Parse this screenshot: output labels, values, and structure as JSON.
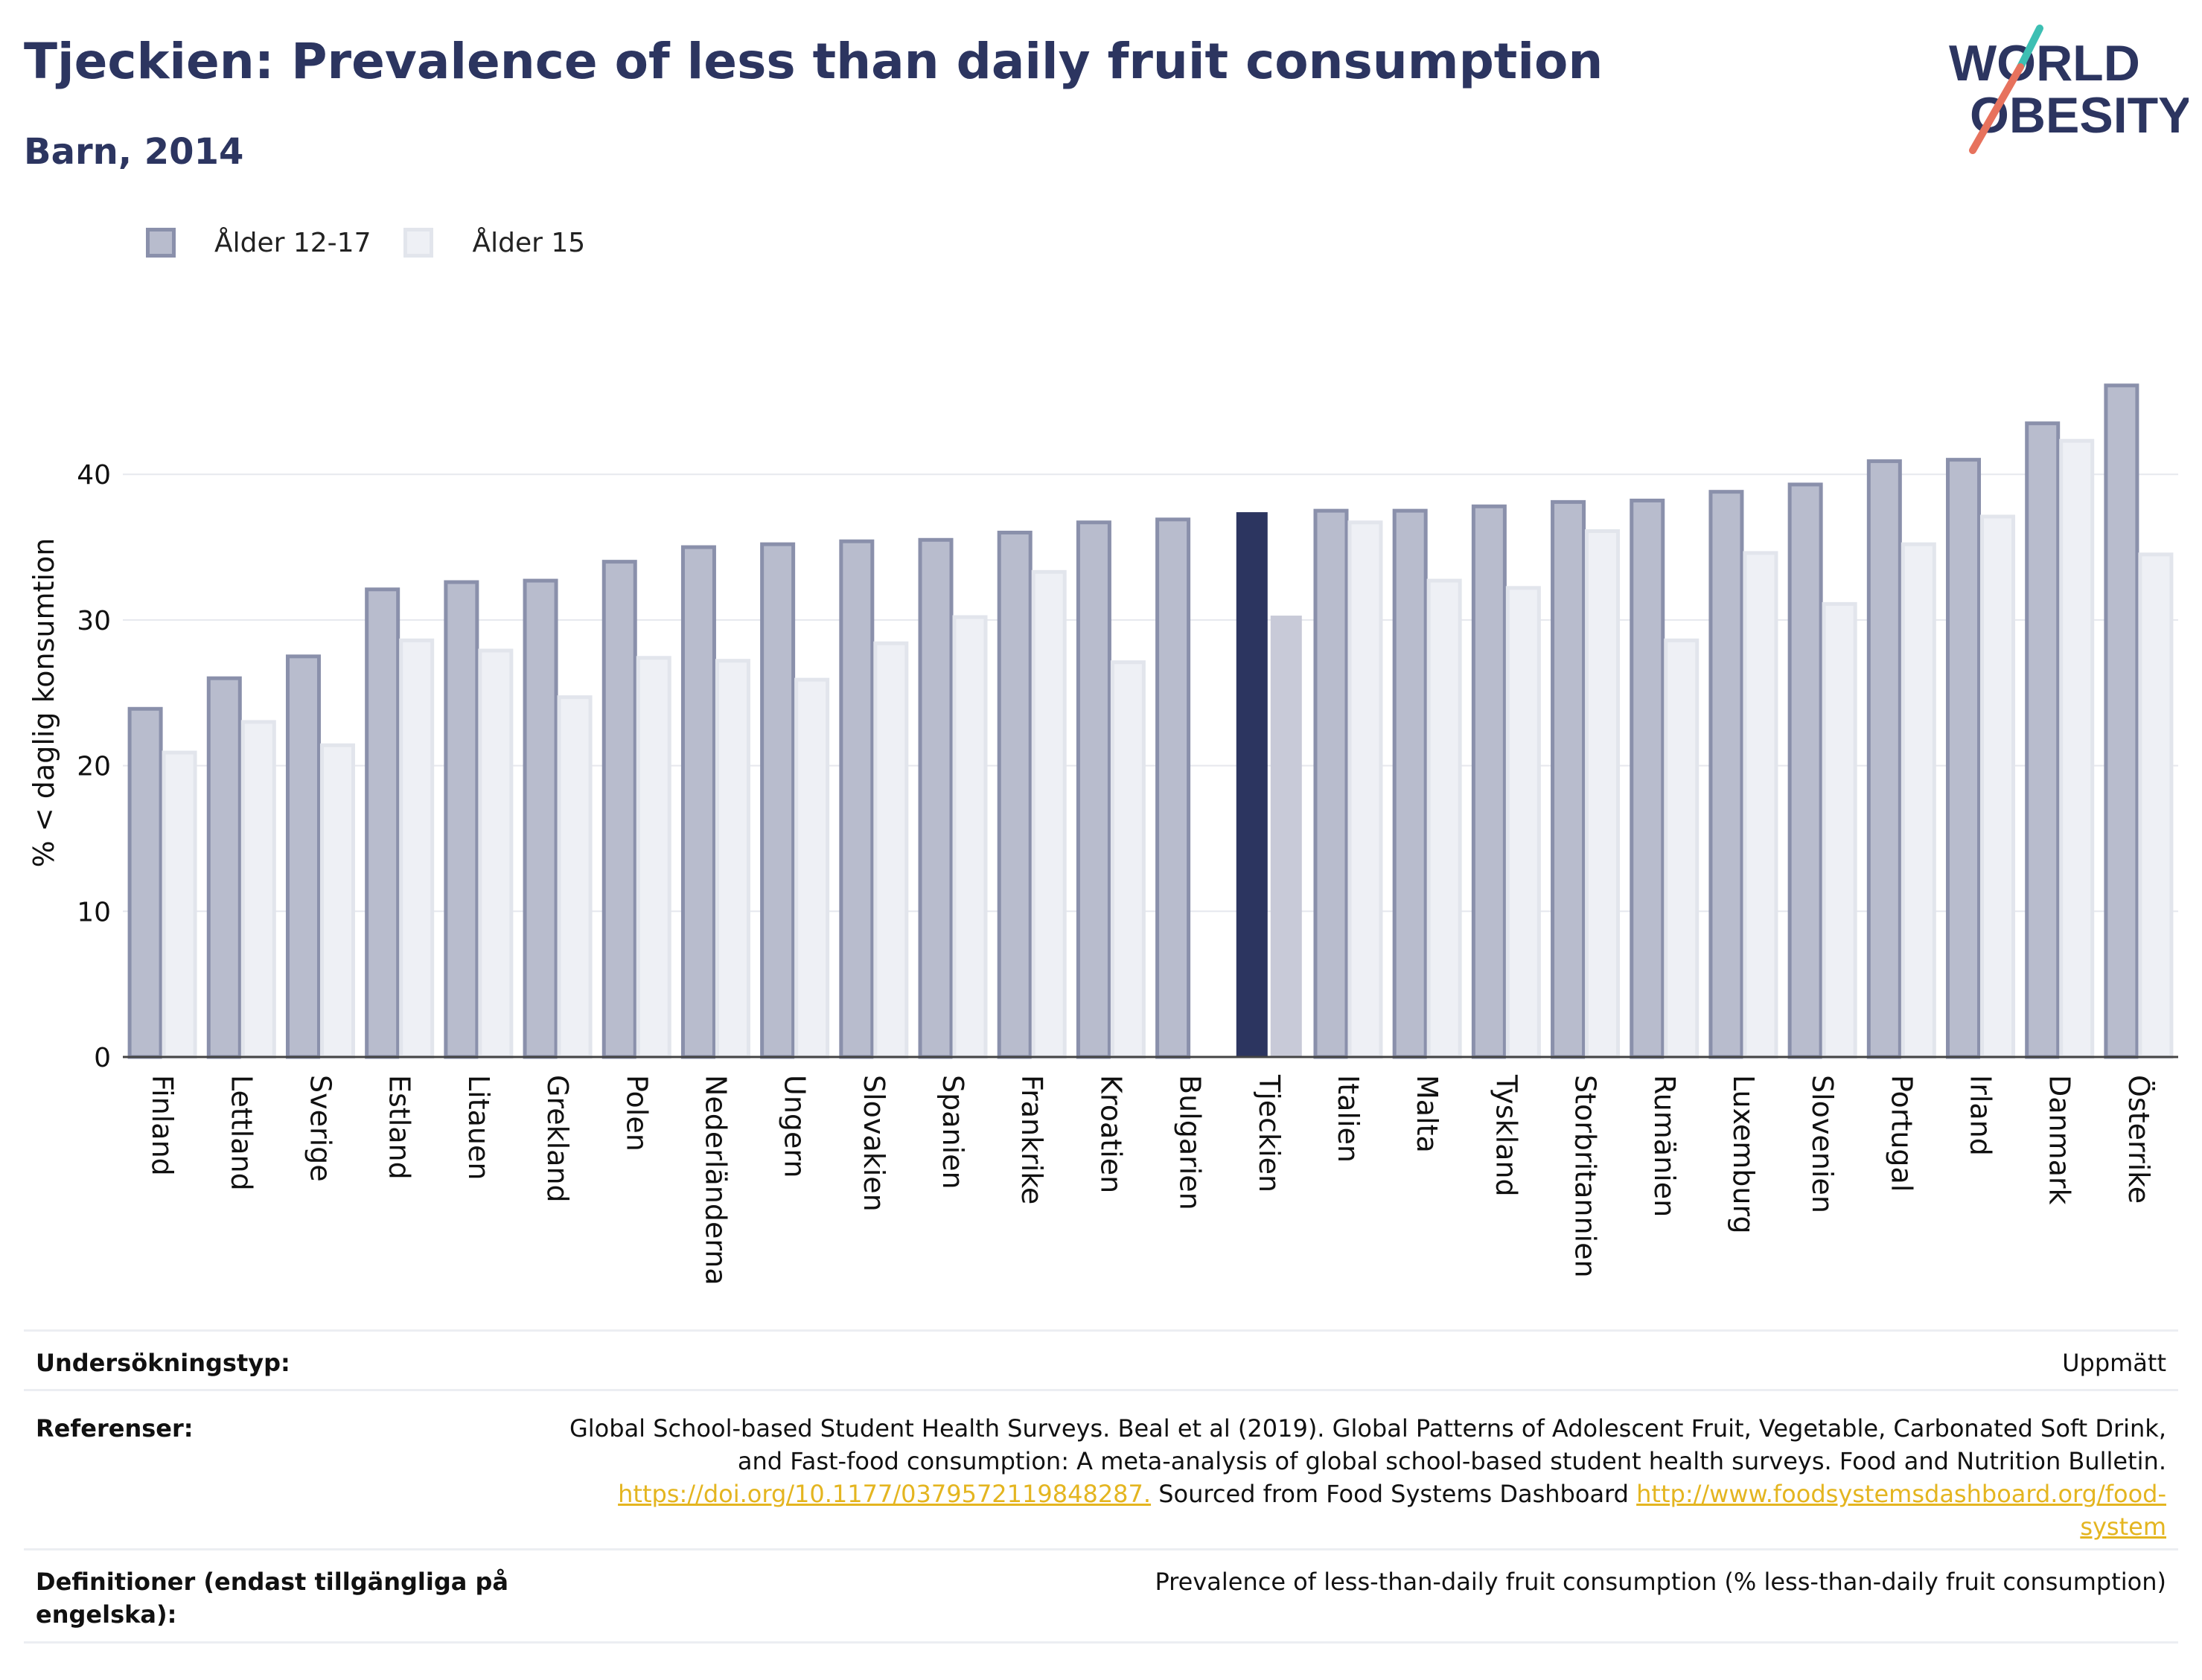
{
  "header": {
    "title": "Tjeckien: Prevalence of less than daily fruit consumption",
    "subtitle": "Barn, 2014"
  },
  "logo": {
    "line1": "WORLD",
    "line2": "OBESITY"
  },
  "colors": {
    "series1_fill": "#b8bccd",
    "series1_stroke": "#8a90ab",
    "series2_fill": "#eef0f5",
    "series2_stroke": "#e2e5ec",
    "highlight1": "#2c3560",
    "highlight2": "#c8cad8",
    "logo_teal": "#3dbfb3",
    "logo_coral": "#e7725d",
    "text": "#2c3560"
  },
  "chart_data": {
    "type": "bar",
    "ylabel": "% < daglig konsumtion",
    "ylim": [
      0,
      46.5
    ],
    "yticks": [
      0,
      10,
      20,
      30,
      40
    ],
    "grid": true,
    "legend_position": "top-left",
    "highlight": "Tjeckien",
    "categories": [
      "Finland",
      "Lettland",
      "Sverige",
      "Estland",
      "Litauen",
      "Grekland",
      "Polen",
      "Nederländerna",
      "Ungern",
      "Slovakien",
      "Spanien",
      "Frankrike",
      "Kroatien",
      "Bulgarien",
      "Tjeckien",
      "Italien",
      "Malta",
      "Tyskland",
      "Storbritannien",
      "Rumänien",
      "Luxemburg",
      "Slovenien",
      "Portugal",
      "Irland",
      "Danmark",
      "Österrike"
    ],
    "series": [
      {
        "name": "Ålder 12-17",
        "values": [
          23.9,
          26.0,
          27.5,
          32.1,
          32.6,
          32.7,
          34.0,
          35.0,
          35.2,
          35.4,
          35.5,
          36.0,
          36.7,
          36.9,
          37.4,
          37.5,
          37.5,
          37.8,
          38.1,
          38.2,
          38.8,
          39.3,
          40.9,
          41.0,
          43.5,
          46.1
        ]
      },
      {
        "name": "Ålder 15",
        "values": [
          20.9,
          23.0,
          21.4,
          28.6,
          27.9,
          24.7,
          27.4,
          27.2,
          25.9,
          28.4,
          30.2,
          33.3,
          27.1,
          null,
          30.3,
          36.7,
          32.7,
          32.2,
          36.1,
          28.6,
          34.6,
          31.1,
          35.2,
          37.1,
          42.3,
          34.5
        ]
      }
    ]
  },
  "info": {
    "survey_type": {
      "label": "Undersökningstyp:",
      "value": "Uppmätt"
    },
    "references": {
      "label": "Referenser:",
      "line1": "Global School-based Student Health Surveys. Beal et al (2019). Global Patterns of Adolescent Fruit, Vegetable, Carbonated Soft Drink,",
      "line2": "and Fast-food consumption: A meta-analysis of global school-based student health surveys. Food and Nutrition Bulletin.",
      "doi": "https://doi.org/10.1177/0379572119848287.",
      "sourced": " Sourced from Food Systems Dashboard ",
      "url_part1": "http://www.foodsystemsdashboard.org/food-",
      "url_part2": "system"
    },
    "definitions": {
      "label": "Definitioner (endast tillgängliga på engelska):",
      "value": "Prevalence of less-than-daily fruit consumption (% less-than-daily fruit consumption)"
    }
  }
}
